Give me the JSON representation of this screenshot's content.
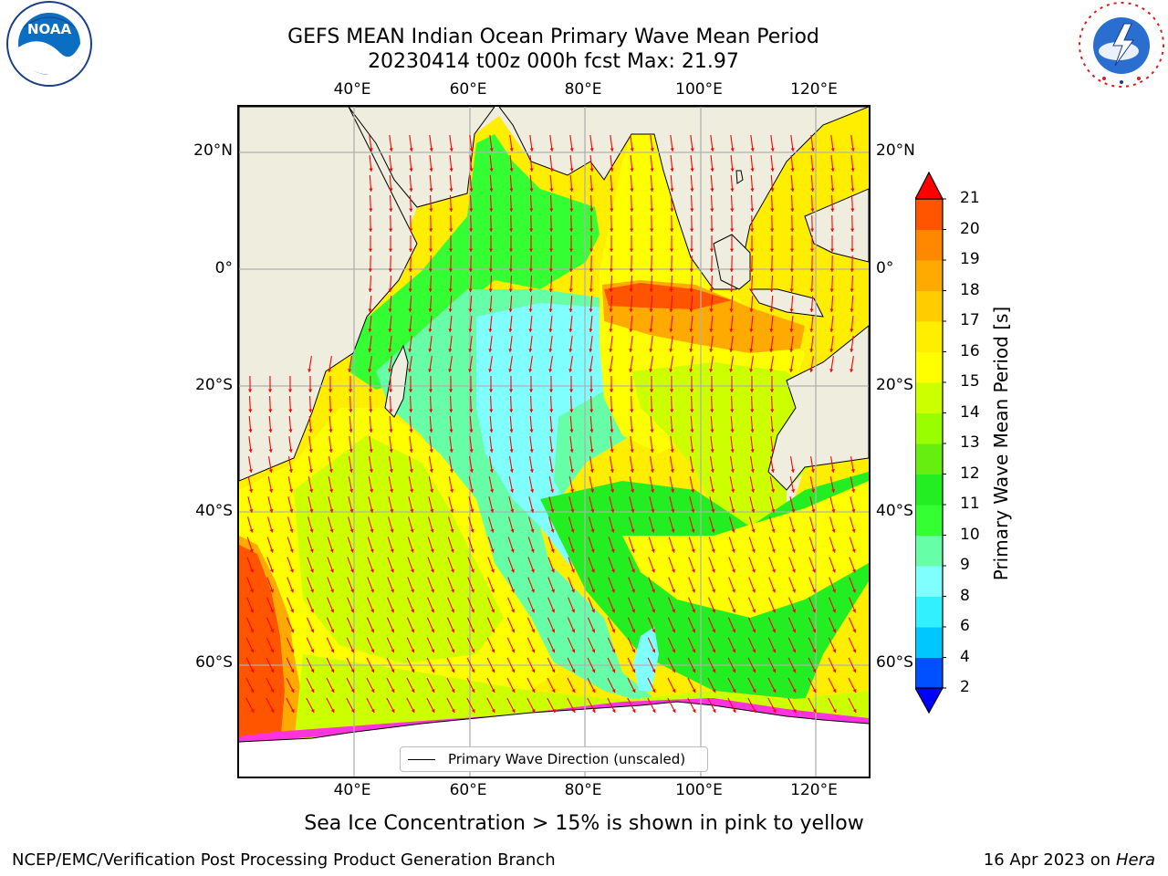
{
  "title": {
    "line1": "GEFS MEAN Indian Ocean Primary Wave Mean Period",
    "line2": "20230414 t00z 000h fcst   Max: 21.97"
  },
  "axes": {
    "lon_labels": [
      "40°E",
      "60°E",
      "80°E",
      "100°E",
      "120°E"
    ],
    "lat_labels": [
      "20°N",
      "0°",
      "20°S",
      "40°S",
      "60°S"
    ]
  },
  "colorbar": {
    "title": "Primary Wave Mean Period [s]",
    "tick_labels": [
      "2",
      "4",
      "6",
      "8",
      "9",
      "10",
      "11",
      "12",
      "13",
      "14",
      "15",
      "16",
      "17",
      "18",
      "19",
      "20",
      "21"
    ],
    "colors": [
      "#0050ff",
      "#00c8ff",
      "#33f0ff",
      "#80ffff",
      "#66ffa8",
      "#33ff33",
      "#22ee22",
      "#66ee11",
      "#99ff00",
      "#ccff00",
      "#ffff00",
      "#ffee00",
      "#ffcc00",
      "#ffaa00",
      "#ff8800",
      "#ff5500",
      "#ff2200"
    ],
    "under_color": "#0000ff",
    "over_color": "#ff0000"
  },
  "legend": {
    "label": "Primary Wave Direction (unscaled)"
  },
  "footnote": "Sea Ice Concentration > 15% is shown in pink to yellow",
  "credits": {
    "left": "NCEP/EMC/Verification Post Processing Product Generation Branch",
    "right_prefix": "16 Apr 2023 on ",
    "right_host": "Hera"
  },
  "logos": {
    "noaa": "NOAA",
    "nws": "NATIONAL WEATHER SERVICE"
  },
  "style": {
    "land": "#efeddd",
    "grid": "#b0b0b0",
    "arrow": "#ff0000",
    "sea_ice": "#ff33dd"
  }
}
